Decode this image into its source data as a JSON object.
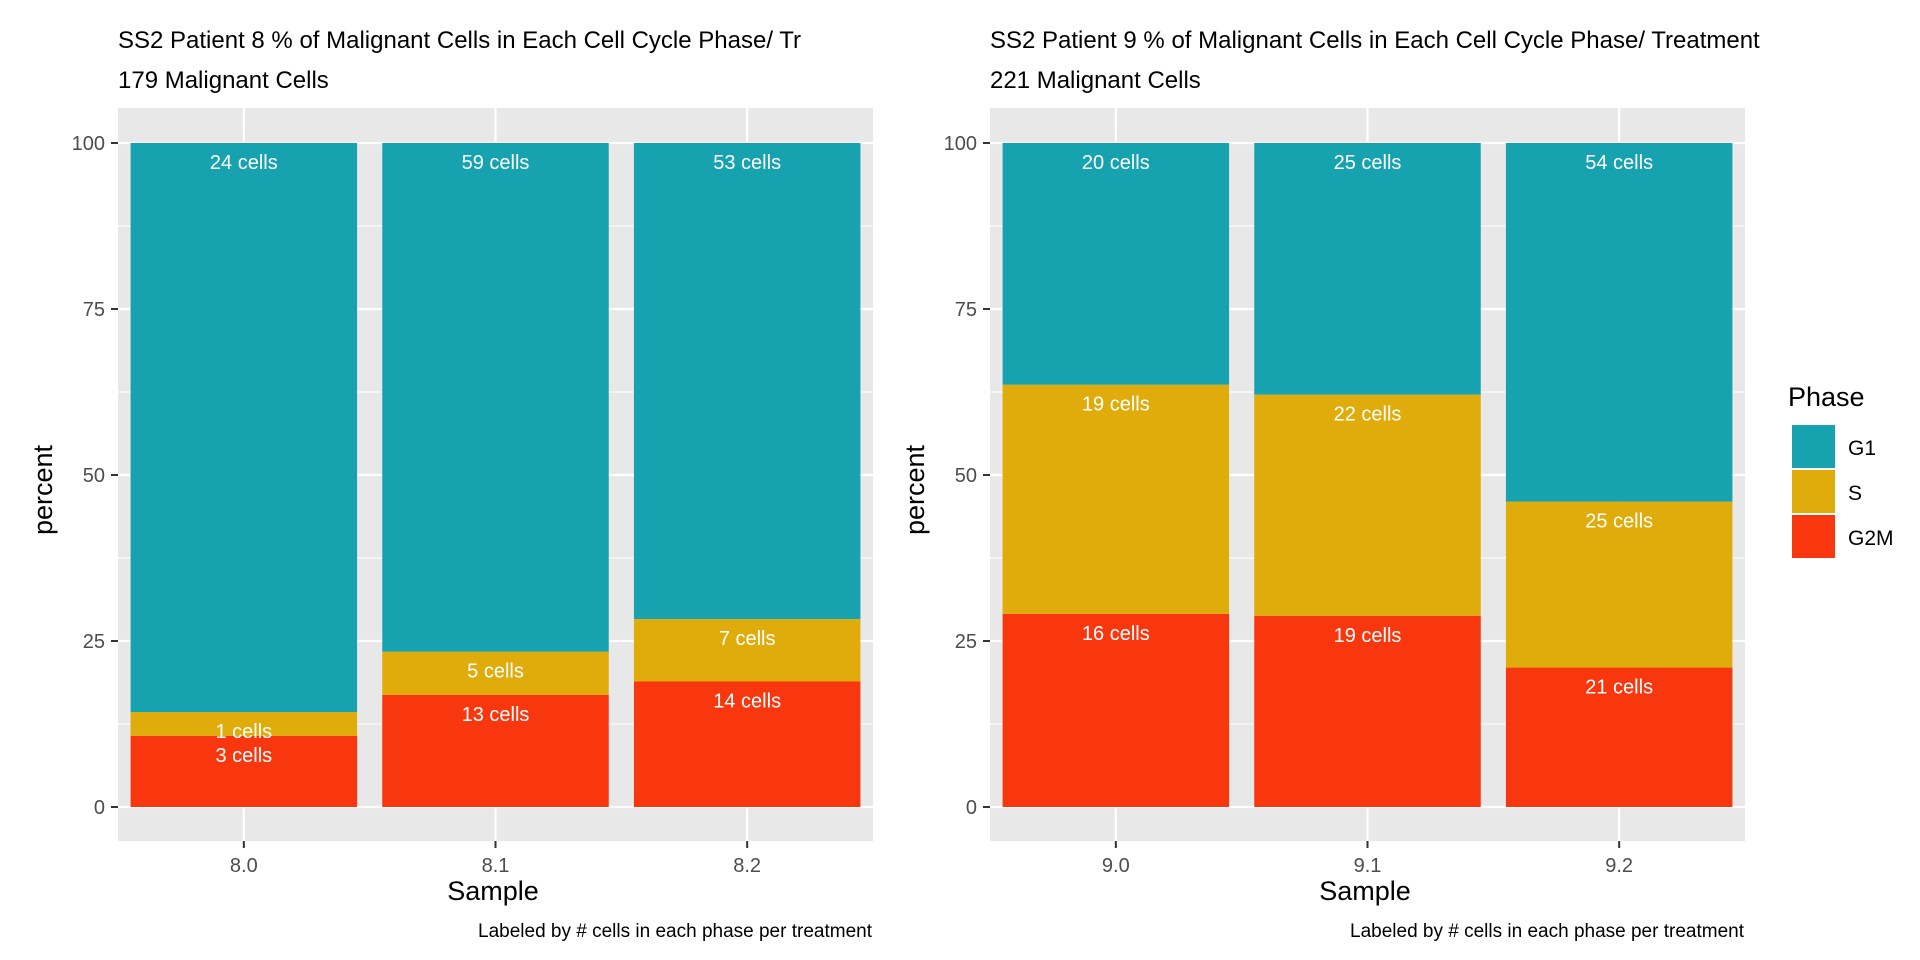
{
  "colors": {
    "G1": "#17A2B0",
    "S": "#E0AC0C",
    "G2M": "#F8370F",
    "panel_bg": "#E8E8E8",
    "grid": "#FFFFFF",
    "label_text": "#FFFFFF"
  },
  "legend": {
    "title": "Phase",
    "items": [
      {
        "key": "G1",
        "label": "G1"
      },
      {
        "key": "S",
        "label": "S"
      },
      {
        "key": "G2M",
        "label": "G2M"
      }
    ]
  },
  "chart_data": [
    {
      "type": "bar",
      "stacked": true,
      "title": "SS2 Patient 8 % of Malignant Cells in Each Cell Cycle Phase/ Tr",
      "subtitle": "179 Malignant Cells",
      "xlabel": "Sample",
      "ylabel": "percent",
      "caption": "Labeled by # cells in each phase per treatment",
      "ylim": [
        0,
        100
      ],
      "yticks": [
        "0",
        "25",
        "50",
        "75",
        "100"
      ],
      "categories": [
        "8.0",
        "8.1",
        "8.2"
      ],
      "series": [
        {
          "name": "G2M",
          "values": [
            10.7,
            16.9,
            18.9
          ],
          "labels": [
            "3 cells",
            "13 cells",
            "14 cells"
          ]
        },
        {
          "name": "S",
          "values": [
            3.6,
            6.5,
            9.4
          ],
          "labels": [
            "1 cells",
            "5 cells",
            "7 cells"
          ]
        },
        {
          "name": "G1",
          "values": [
            85.7,
            76.6,
            71.7
          ],
          "labels": [
            "24 cells",
            "59 cells",
            "53 cells"
          ]
        }
      ]
    },
    {
      "type": "bar",
      "stacked": true,
      "title": "SS2 Patient 9 % of Malignant Cells in Each Cell Cycle Phase/ Treatment",
      "subtitle": "221 Malignant Cells",
      "xlabel": "Sample",
      "ylabel": "percent",
      "caption": "Labeled by # cells in each phase per treatment",
      "ylim": [
        0,
        100
      ],
      "yticks": [
        "0",
        "25",
        "50",
        "75",
        "100"
      ],
      "categories": [
        "9.0",
        "9.1",
        "9.2"
      ],
      "series": [
        {
          "name": "G2M",
          "values": [
            29.1,
            28.8,
            21.0
          ],
          "labels": [
            "16 cells",
            "19 cells",
            "21 cells"
          ]
        },
        {
          "name": "S",
          "values": [
            34.5,
            33.3,
            25.0
          ],
          "labels": [
            "19 cells",
            "22 cells",
            "25 cells"
          ]
        },
        {
          "name": "G1",
          "values": [
            36.4,
            37.9,
            54.0
          ],
          "labels": [
            "20 cells",
            "25 cells",
            "54 cells"
          ]
        }
      ]
    }
  ]
}
